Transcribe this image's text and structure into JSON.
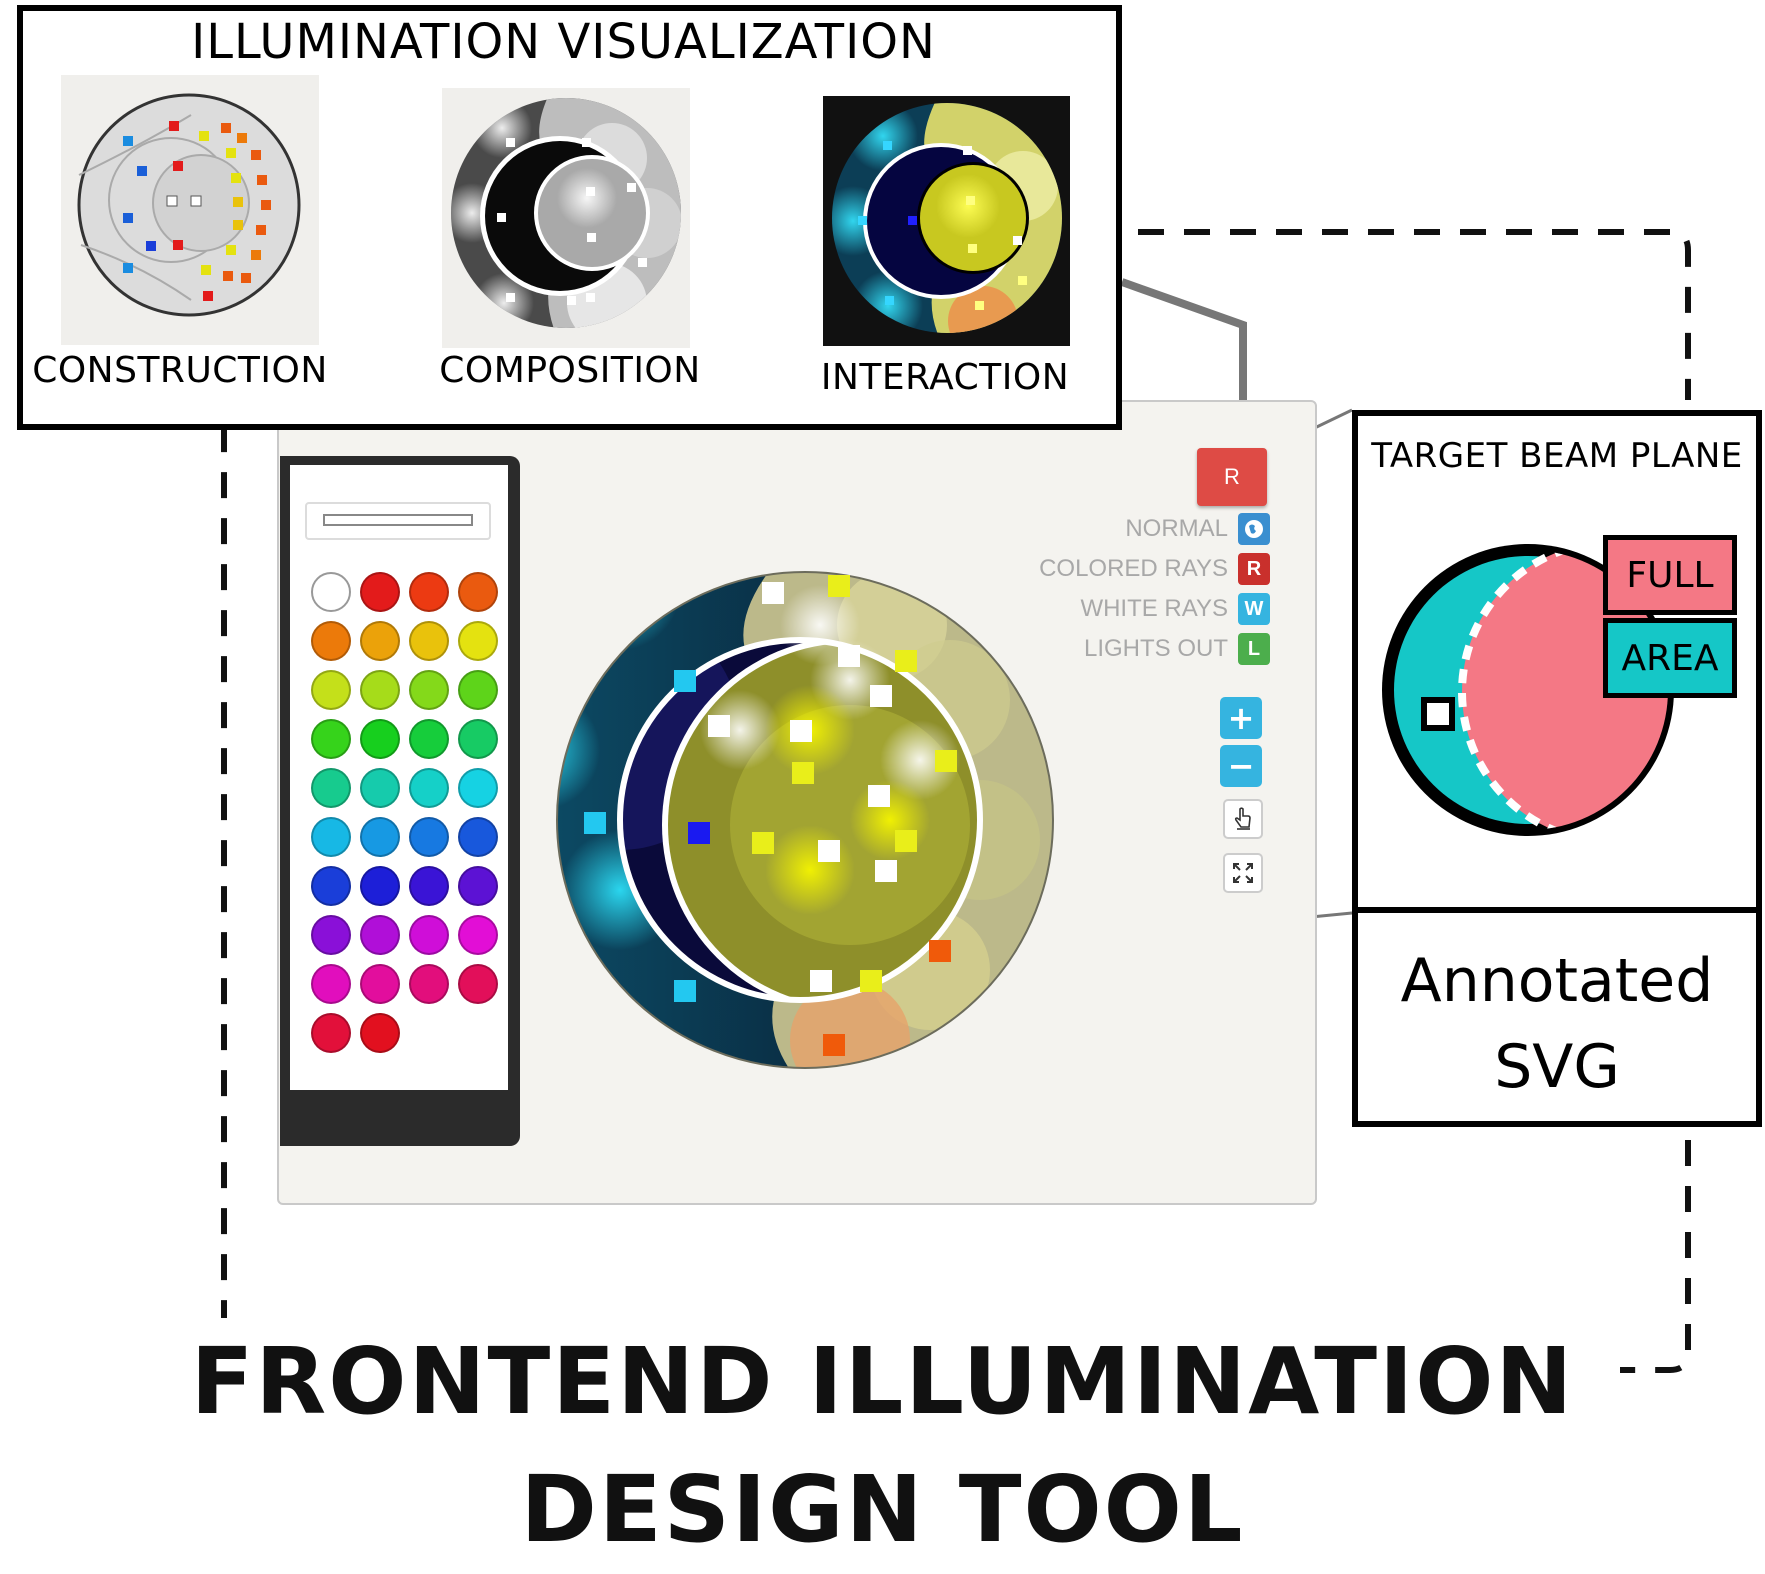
{
  "visualization": {
    "title": "ILLUMINATION VISUALIZATION",
    "panels": [
      {
        "label": "CONSTRUCTION"
      },
      {
        "label": "COMPOSITION"
      },
      {
        "label": "INTERACTION"
      }
    ]
  },
  "tool": {
    "r_button_label": "R",
    "modes": [
      {
        "label": "NORMAL",
        "key": "",
        "color": "#3a8fd0",
        "icon": "globe-icon"
      },
      {
        "label": "COLORED RAYS",
        "key": "R",
        "color": "#c9302c"
      },
      {
        "label": "WHITE RAYS",
        "key": "W",
        "color": "#35b4e0"
      },
      {
        "label": "LIGHTS OUT",
        "key": "L",
        "color": "#4cae4c"
      }
    ],
    "zoom_in_label": "+",
    "zoom_out_label": "−",
    "palette_colors": [
      "#ffffff",
      "#e31b1b",
      "#ec3a12",
      "#ea5a0f",
      "#ec7a0a",
      "#eba20a",
      "#e9c20c",
      "#e4e210",
      "#c4e01a",
      "#a6dc1a",
      "#84d91a",
      "#5ed41a",
      "#36d31b",
      "#17cf1e",
      "#16cd3b",
      "#17cb64",
      "#17cb8e",
      "#16cbac",
      "#15d0c8",
      "#16d2e3",
      "#17b8e5",
      "#1799e3",
      "#1779e1",
      "#1858dc",
      "#1a3ed9",
      "#1d1fd8",
      "#3a14d6",
      "#5c12d4",
      "#8a10d8",
      "#b00fd8",
      "#cf0ed8",
      "#e20ed6",
      "#e10ebd",
      "#e20e9d",
      "#e20e7c",
      "#e20f5a",
      "#e2103a",
      "#e2101f"
    ]
  },
  "target_panel": {
    "title": "TARGET BEAM PLANE",
    "legend_full": "FULL",
    "legend_area": "AREA",
    "full_color": "#f47885",
    "area_color": "#15c7c7",
    "annotated_line1": "Annotated",
    "annotated_line2": "SVG"
  },
  "footer": {
    "title_line1": "FRONTEND ILLUMINATION",
    "title_line2": "DESIGN TOOL"
  }
}
